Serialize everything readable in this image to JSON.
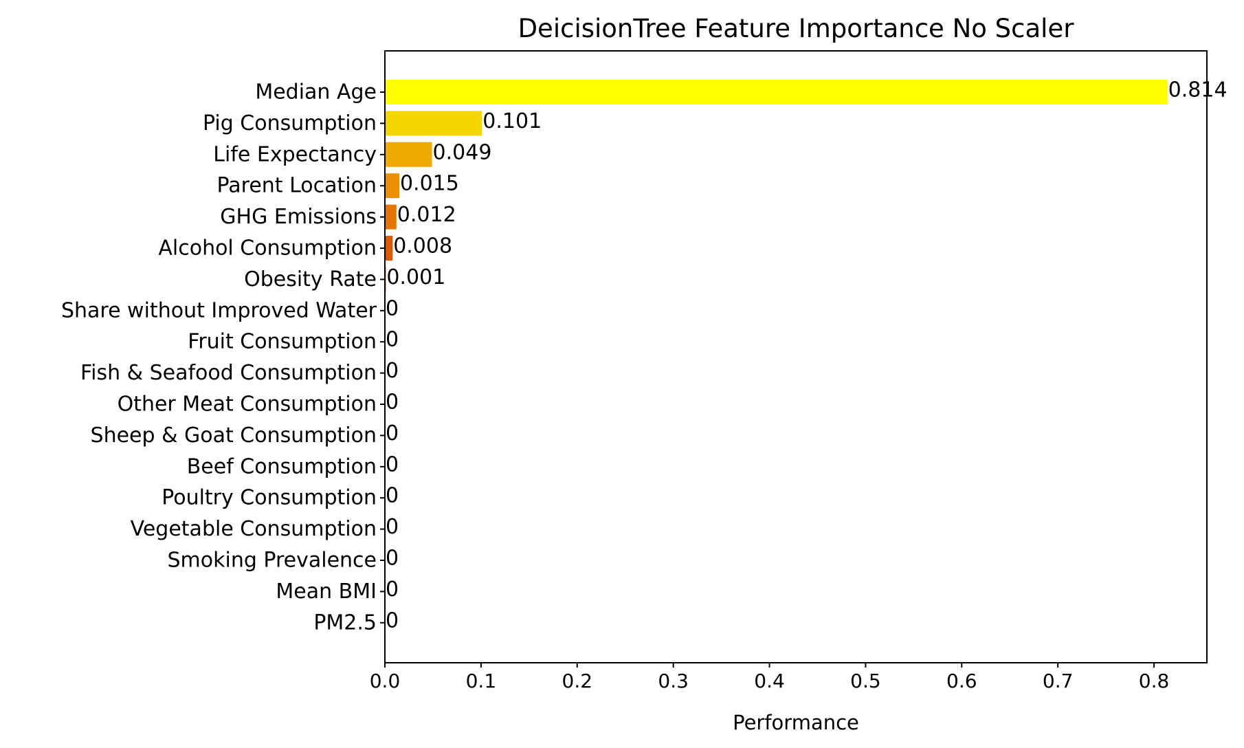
{
  "chart_data": {
    "type": "bar",
    "orientation": "horizontal",
    "title": "DeicisionTree Feature Importance No Scaler",
    "xlabel": "Performance",
    "ylabel": "",
    "xlim": [
      0,
      0.855
    ],
    "xticks": [
      "0.0",
      "0.1",
      "0.2",
      "0.3",
      "0.4",
      "0.5",
      "0.6",
      "0.7",
      "0.8"
    ],
    "grid": false,
    "legend": false,
    "categories": [
      "Median Age",
      "Pig Consumption",
      "Life Expectancy",
      "Parent Location",
      "GHG Emissions",
      "Alcohol Consumption",
      "Obesity Rate",
      "Share without Improved Water",
      "Fruit Consumption",
      "Fish & Seafood Consumption",
      "Other Meat Consumption",
      "Sheep & Goat Consumption",
      "Beef Consumption",
      "Poultry Consumption",
      "Vegetable Consumption",
      "Smoking Prevalence",
      "Mean BMI",
      "PM2.5"
    ],
    "values": [
      0.814,
      0.101,
      0.049,
      0.015,
      0.012,
      0.008,
      0.001,
      0,
      0,
      0,
      0,
      0,
      0,
      0,
      0,
      0,
      0,
      0
    ],
    "value_labels": [
      "0.814",
      "0.101",
      "0.049",
      "0.015",
      "0.012",
      "0.008",
      "0.001",
      "0",
      "0",
      "0",
      "0",
      "0",
      "0",
      "0",
      "0",
      "0",
      "0",
      "0"
    ],
    "bar_colors": [
      "#ffff00",
      "#f5d500",
      "#eeaa00",
      "#e98f00",
      "#e47500",
      "#df5600",
      "#d93a00",
      "#d42000",
      "#cf0900",
      "#cc0000",
      "#c40000",
      "#bb0000",
      "#b20000",
      "#a80000",
      "#9e0000",
      "#940000",
      "#8a0000",
      "#800000"
    ]
  }
}
